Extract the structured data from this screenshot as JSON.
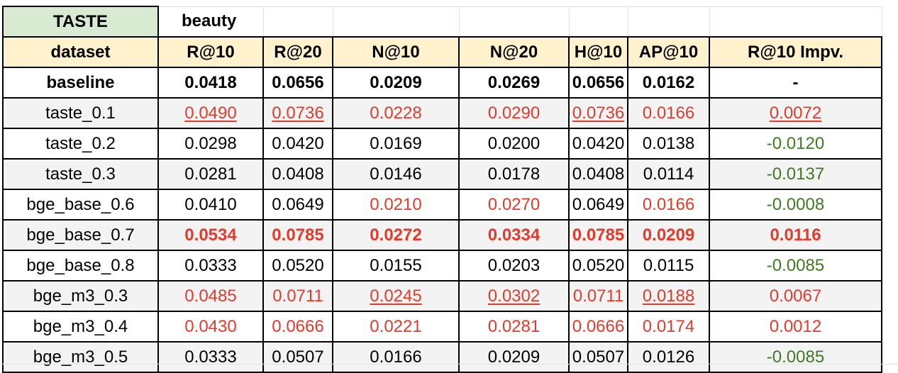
{
  "sheet": {
    "top_row": {
      "label": "TASTE",
      "value": "beauty"
    },
    "headers": [
      "dataset",
      "R@10",
      "R@20",
      "N@10",
      "N@20",
      "H@10",
      "AP@10",
      "R@10 Impv."
    ],
    "rows": [
      {
        "cells": [
          "baseline",
          "0.0418",
          "0.0656",
          "0.0209",
          "0.0269",
          "0.0656",
          "0.0162",
          "-"
        ],
        "styles": [
          "b",
          "b",
          "b",
          "b",
          "b",
          "b",
          "b",
          "b"
        ]
      },
      {
        "cells": [
          "taste_0.1",
          "0.0490",
          "0.0736",
          "0.0228",
          "0.0290",
          "0.0736",
          "0.0166",
          "0.0072"
        ],
        "styles": [
          "",
          "r u",
          "r u",
          "r",
          "r",
          "r u",
          "r",
          "r u"
        ]
      },
      {
        "cells": [
          "taste_0.2",
          "0.0298",
          "0.0420",
          "0.0169",
          "0.0200",
          "0.0420",
          "0.0138",
          "-0.0120"
        ],
        "styles": [
          "",
          "",
          "",
          "",
          "",
          "",
          "",
          "g"
        ]
      },
      {
        "cells": [
          "taste_0.3",
          "0.0281",
          "0.0408",
          "0.0146",
          "0.0178",
          "0.0408",
          "0.0114",
          "-0.0137"
        ],
        "styles": [
          "",
          "",
          "",
          "",
          "",
          "",
          "",
          "g"
        ]
      },
      {
        "cells": [
          "bge_base_0.6",
          "0.0410",
          "0.0649",
          "0.0210",
          "0.0270",
          "0.0649",
          "0.0166",
          "-0.0008"
        ],
        "styles": [
          "",
          "",
          "",
          "r",
          "r",
          "",
          "r",
          "g"
        ]
      },
      {
        "cells": [
          "bge_base_0.7",
          "0.0534",
          "0.0785",
          "0.0272",
          "0.0334",
          "0.0785",
          "0.0209",
          "0.0116"
        ],
        "styles": [
          "",
          "r b",
          "r b",
          "r b",
          "r b",
          "r b",
          "r b",
          "r b"
        ]
      },
      {
        "cells": [
          "bge_base_0.8",
          "0.0333",
          "0.0520",
          "0.0155",
          "0.0203",
          "0.0520",
          "0.0115",
          "-0.0085"
        ],
        "styles": [
          "",
          "",
          "",
          "",
          "",
          "",
          "",
          "g"
        ]
      },
      {
        "cells": [
          "bge_m3_0.3",
          "0.0485",
          "0.0711",
          "0.0245",
          "0.0302",
          "0.0711",
          "0.0188",
          "0.0067"
        ],
        "styles": [
          "",
          "r",
          "r",
          "r u",
          "r u",
          "r",
          "r u",
          "r"
        ]
      },
      {
        "cells": [
          "bge_m3_0.4",
          "0.0430",
          "0.0666",
          "0.0221",
          "0.0281",
          "0.0666",
          "0.0174",
          "0.0012"
        ],
        "styles": [
          "",
          "r",
          "r",
          "r",
          "r",
          "r",
          "r",
          "r"
        ]
      },
      {
        "cells": [
          "bge_m3_0.5",
          "0.0333",
          "0.0507",
          "0.0166",
          "0.0209",
          "0.0507",
          "0.0126",
          "-0.0085"
        ],
        "styles": [
          "",
          "",
          "",
          "",
          "",
          "",
          "",
          "g"
        ]
      }
    ],
    "colors": {
      "highlight_red": "#e23b2c",
      "negative_green": "#3f7a24",
      "header_fill": "#fff2cc",
      "selected_fill": "#d9ead3",
      "row_fill": "#f3f3f3"
    }
  }
}
